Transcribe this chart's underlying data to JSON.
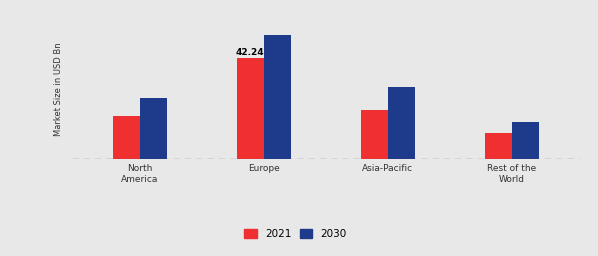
{
  "categories": [
    "North\nAmerica",
    "Europe",
    "Asia-Pacific",
    "Rest of the\nWorld"
  ],
  "values_2021": [
    18.0,
    42.24,
    20.5,
    11.0
  ],
  "values_2030": [
    25.5,
    52.0,
    30.0,
    15.5
  ],
  "color_2021": "#f03030",
  "color_2030": "#1e3a8a",
  "ylabel": "Market Size in USD Bn",
  "annotation_text": "42.24",
  "annotation_bar": 1,
  "ylim": [
    0,
    58
  ],
  "bar_width": 0.22,
  "legend_labels": [
    "2021",
    "2030"
  ],
  "background_color": "#e8e8e8",
  "figsize": [
    5.98,
    2.56
  ],
  "dpi": 100
}
